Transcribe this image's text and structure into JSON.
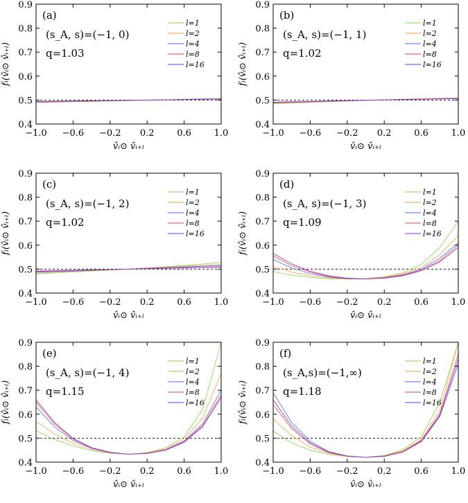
{
  "figure": {
    "xlabel": "v̂ᵢ⊙ v̂ᵢ₊ₗ",
    "ylabel": "fₗ(v̂ᵢ⊙ v̂ᵢ₊ₗ)",
    "x_ticks": [
      "−1.0",
      "−0.6",
      "−0.2",
      "0.2",
      "0.6",
      "1.0"
    ],
    "y_ticks": [
      "0.4",
      "0.5",
      "0.6",
      "0.7",
      "0.8",
      "0.9"
    ],
    "legend": [
      "l=1",
      "l=2",
      "l=4",
      "l=8",
      "l=16"
    ]
  },
  "colors": {
    "l=1": "#7fd94a",
    "l=2": "#ff9e3d",
    "l=4": "#3a6ef0",
    "l=8": "#ff3b3b",
    "l=16": "#8a2be2"
  },
  "chart_data": [
    {
      "type": "line",
      "panel": "(a)",
      "param_text": "(s_A, s)=(−1, 0)",
      "q_text": "q=1.03",
      "xlim": [
        -1.0,
        1.0
      ],
      "ylim": [
        0.4,
        0.9
      ],
      "reference_line": 0.5,
      "x": [
        -1.0,
        -0.8,
        -0.6,
        -0.4,
        -0.2,
        0.0,
        0.2,
        0.4,
        0.6,
        0.8,
        1.0
      ],
      "series": [
        {
          "name": "l=1",
          "values": [
            0.49,
            0.491,
            0.493,
            0.494,
            0.496,
            0.497,
            0.499,
            0.501,
            0.503,
            0.505,
            0.507
          ]
        },
        {
          "name": "l=2",
          "values": [
            0.491,
            0.492,
            0.494,
            0.495,
            0.497,
            0.498,
            0.5,
            0.501,
            0.503,
            0.504,
            0.506
          ]
        },
        {
          "name": "l=4",
          "values": [
            0.492,
            0.493,
            0.494,
            0.496,
            0.497,
            0.499,
            0.5,
            0.501,
            0.503,
            0.504,
            0.505
          ]
        },
        {
          "name": "l=8",
          "values": [
            0.493,
            0.494,
            0.495,
            0.496,
            0.498,
            0.499,
            0.5,
            0.501,
            0.502,
            0.503,
            0.504
          ]
        },
        {
          "name": "l=16",
          "values": [
            0.494,
            0.495,
            0.496,
            0.497,
            0.498,
            0.499,
            0.5,
            0.501,
            0.502,
            0.503,
            0.504
          ]
        }
      ]
    },
    {
      "type": "line",
      "panel": "(b)",
      "param_text": "(s_A, s)=(−1, 1)",
      "q_text": "q=1.02",
      "xlim": [
        -1.0,
        1.0
      ],
      "ylim": [
        0.4,
        0.9
      ],
      "reference_line": 0.5,
      "x": [
        -1.0,
        -0.8,
        -0.6,
        -0.4,
        -0.2,
        0.0,
        0.2,
        0.4,
        0.6,
        0.8,
        1.0
      ],
      "series": [
        {
          "name": "l=1",
          "values": [
            0.485,
            0.487,
            0.49,
            0.493,
            0.496,
            0.499,
            0.501,
            0.503,
            0.505,
            0.507,
            0.509
          ]
        },
        {
          "name": "l=2",
          "values": [
            0.487,
            0.489,
            0.491,
            0.494,
            0.496,
            0.499,
            0.501,
            0.503,
            0.505,
            0.507,
            0.508
          ]
        },
        {
          "name": "l=4",
          "values": [
            0.489,
            0.491,
            0.493,
            0.495,
            0.497,
            0.499,
            0.501,
            0.503,
            0.504,
            0.506,
            0.507
          ]
        },
        {
          "name": "l=8",
          "values": [
            0.49,
            0.492,
            0.494,
            0.496,
            0.498,
            0.499,
            0.501,
            0.502,
            0.504,
            0.505,
            0.506
          ]
        },
        {
          "name": "l=16",
          "values": [
            0.491,
            0.493,
            0.494,
            0.496,
            0.498,
            0.499,
            0.501,
            0.502,
            0.503,
            0.505,
            0.506
          ]
        }
      ]
    },
    {
      "type": "line",
      "panel": "(c)",
      "param_text": "(s_A, s)=(−1, 2)",
      "q_text": "q=1.02",
      "xlim": [
        -1.0,
        1.0
      ],
      "ylim": [
        0.4,
        0.9
      ],
      "reference_line": 0.5,
      "x": [
        -1.0,
        -0.8,
        -0.6,
        -0.4,
        -0.2,
        0.0,
        0.2,
        0.4,
        0.6,
        0.8,
        1.0
      ],
      "series": [
        {
          "name": "l=1",
          "values": [
            0.48,
            0.484,
            0.488,
            0.492,
            0.496,
            0.5,
            0.505,
            0.51,
            0.515,
            0.521,
            0.528
          ]
        },
        {
          "name": "l=2",
          "values": [
            0.484,
            0.487,
            0.491,
            0.494,
            0.497,
            0.5,
            0.504,
            0.508,
            0.512,
            0.516,
            0.52
          ]
        },
        {
          "name": "l=4",
          "values": [
            0.487,
            0.49,
            0.492,
            0.495,
            0.498,
            0.5,
            0.503,
            0.506,
            0.509,
            0.512,
            0.515
          ]
        },
        {
          "name": "l=8",
          "values": [
            0.49,
            0.492,
            0.494,
            0.496,
            0.498,
            0.5,
            0.502,
            0.504,
            0.506,
            0.508,
            0.51
          ]
        },
        {
          "name": "l=16",
          "values": [
            0.492,
            0.493,
            0.495,
            0.497,
            0.498,
            0.5,
            0.502,
            0.503,
            0.505,
            0.507,
            0.508
          ]
        }
      ]
    },
    {
      "type": "line",
      "panel": "(d)",
      "param_text": "(s_A, s)=(−1, 3)",
      "q_text": "q=1.09",
      "xlim": [
        -1.0,
        1.0
      ],
      "ylim": [
        0.4,
        0.9
      ],
      "reference_line": 0.5,
      "x": [
        -1.0,
        -0.8,
        -0.6,
        -0.4,
        -0.2,
        0.0,
        0.2,
        0.4,
        0.6,
        0.8,
        1.0
      ],
      "series": [
        {
          "name": "l=1",
          "values": [
            0.49,
            0.475,
            0.465,
            0.46,
            0.458,
            0.46,
            0.468,
            0.485,
            0.52,
            0.59,
            0.7
          ]
        },
        {
          "name": "l=2",
          "values": [
            0.51,
            0.488,
            0.472,
            0.463,
            0.459,
            0.46,
            0.466,
            0.48,
            0.507,
            0.56,
            0.64
          ]
        },
        {
          "name": "l=4",
          "values": [
            0.54,
            0.505,
            0.481,
            0.467,
            0.46,
            0.459,
            0.464,
            0.476,
            0.5,
            0.545,
            0.61
          ]
        },
        {
          "name": "l=8",
          "values": [
            0.555,
            0.515,
            0.487,
            0.47,
            0.461,
            0.459,
            0.463,
            0.474,
            0.496,
            0.535,
            0.6
          ]
        },
        {
          "name": "l=16",
          "values": [
            0.565,
            0.522,
            0.491,
            0.472,
            0.462,
            0.459,
            0.462,
            0.472,
            0.493,
            0.53,
            0.59
          ]
        }
      ]
    },
    {
      "type": "line",
      "panel": "(e)",
      "param_text": "(s_A, s)=(−1, 4)",
      "q_text": "q=1.15",
      "xlim": [
        -1.0,
        1.0
      ],
      "ylim": [
        0.4,
        0.9
      ],
      "reference_line": 0.5,
      "x": [
        -1.0,
        -0.8,
        -0.6,
        -0.4,
        -0.2,
        0.0,
        0.2,
        0.4,
        0.6,
        0.8,
        1.0
      ],
      "series": [
        {
          "name": "l=1",
          "values": [
            0.53,
            0.495,
            0.467,
            0.448,
            0.437,
            0.433,
            0.44,
            0.46,
            0.505,
            0.62,
            0.9
          ]
        },
        {
          "name": "l=2",
          "values": [
            0.57,
            0.518,
            0.478,
            0.452,
            0.438,
            0.433,
            0.438,
            0.455,
            0.495,
            0.585,
            0.77
          ]
        },
        {
          "name": "l=4",
          "values": [
            0.63,
            0.548,
            0.49,
            0.457,
            0.44,
            0.433,
            0.437,
            0.452,
            0.488,
            0.56,
            0.7
          ]
        },
        {
          "name": "l=8",
          "values": [
            0.65,
            0.56,
            0.496,
            0.459,
            0.441,
            0.433,
            0.437,
            0.451,
            0.485,
            0.552,
            0.68
          ]
        },
        {
          "name": "l=16",
          "values": [
            0.66,
            0.565,
            0.499,
            0.46,
            0.441,
            0.433,
            0.436,
            0.45,
            0.483,
            0.548,
            0.67
          ]
        }
      ]
    },
    {
      "type": "line",
      "panel": "(f)",
      "param_text": "(s_A,s)=(−1,∞)",
      "q_text": "q=1.18",
      "xlim": [
        -1.0,
        1.0
      ],
      "ylim": [
        0.4,
        0.9
      ],
      "reference_line": 0.5,
      "x": [
        -1.0,
        -0.8,
        -0.6,
        -0.4,
        -0.2,
        0.0,
        0.2,
        0.4,
        0.6,
        0.8,
        1.0
      ],
      "series": [
        {
          "name": "l=1",
          "values": [
            0.53,
            0.48,
            0.45,
            0.432,
            0.423,
            0.42,
            0.428,
            0.452,
            0.505,
            0.65,
            0.9
          ]
        },
        {
          "name": "l=2",
          "values": [
            0.58,
            0.51,
            0.463,
            0.436,
            0.424,
            0.42,
            0.426,
            0.447,
            0.495,
            0.615,
            0.9
          ]
        },
        {
          "name": "l=4",
          "values": [
            0.69,
            0.565,
            0.487,
            0.444,
            0.426,
            0.42,
            0.424,
            0.442,
            0.485,
            0.59,
            0.81
          ]
        },
        {
          "name": "l=8",
          "values": [
            0.64,
            0.54,
            0.476,
            0.44,
            0.425,
            0.42,
            0.425,
            0.444,
            0.49,
            0.6,
            0.85
          ]
        },
        {
          "name": "l=16",
          "values": [
            0.66,
            0.55,
            0.48,
            0.442,
            0.425,
            0.42,
            0.424,
            0.443,
            0.487,
            0.595,
            0.83
          ]
        }
      ]
    }
  ]
}
